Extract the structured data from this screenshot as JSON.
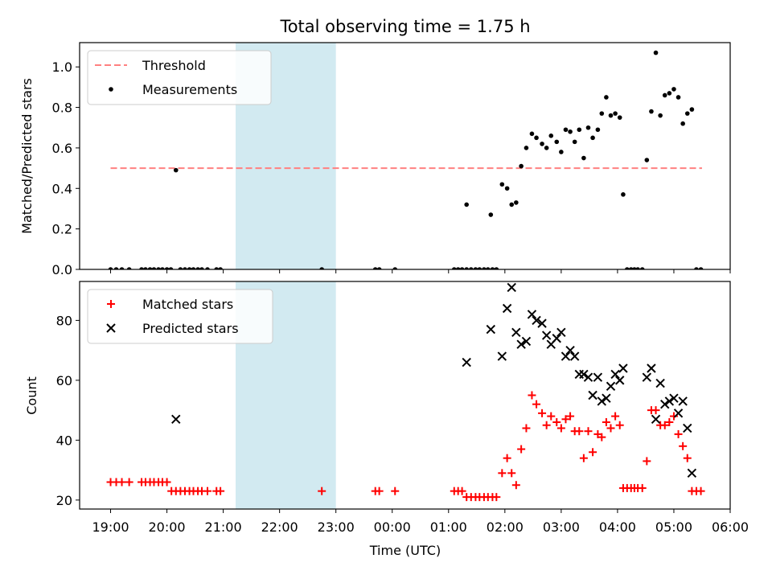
{
  "figure": {
    "title": "Total observing time = 1.75 h",
    "xlabel": "Time (UTC)",
    "x_ticks": [
      "19:00",
      "20:00",
      "21:00",
      "22:00",
      "23:00",
      "00:00",
      "01:00",
      "02:00",
      "03:00",
      "04:00",
      "05:00",
      "06:00"
    ],
    "highlight_span_hours": [
      2.22,
      4.0
    ],
    "colors": {
      "threshold": "#ff8080",
      "measurement": "#000000",
      "matched": "#ff0000",
      "predicted": "#000000",
      "span": "#add8e6"
    }
  },
  "chart_data": [
    {
      "type": "scatter",
      "ylabel": "Matched/Predicted stars",
      "xlim": [
        -0.55,
        11.0
      ],
      "ylim": [
        0,
        1.12
      ],
      "y_ticks": [
        "0.0",
        "0.2",
        "0.4",
        "0.6",
        "0.8",
        "1.0"
      ],
      "y_tick_values": [
        0,
        0.2,
        0.4,
        0.6,
        0.8,
        1.0
      ],
      "legend": [
        "Threshold",
        "Measurements"
      ],
      "threshold": {
        "name": "Threshold",
        "x": [
          0,
          10.5
        ],
        "value": 0.5
      },
      "measurements": {
        "name": "Measurements",
        "points": [
          [
            0.0,
            0
          ],
          [
            0.1,
            0
          ],
          [
            0.2,
            0
          ],
          [
            0.33,
            0
          ],
          [
            0.55,
            0
          ],
          [
            0.62,
            0
          ],
          [
            0.7,
            0
          ],
          [
            0.77,
            0
          ],
          [
            0.85,
            0
          ],
          [
            0.92,
            0
          ],
          [
            1.0,
            0
          ],
          [
            1.07,
            0
          ],
          [
            1.16,
            0.49
          ],
          [
            1.24,
            0
          ],
          [
            1.32,
            0
          ],
          [
            1.4,
            0
          ],
          [
            1.47,
            0
          ],
          [
            1.55,
            0
          ],
          [
            1.62,
            0
          ],
          [
            1.72,
            0
          ],
          [
            1.88,
            0
          ],
          [
            1.95,
            0
          ],
          [
            3.75,
            0
          ],
          [
            4.7,
            0
          ],
          [
            4.77,
            0
          ],
          [
            5.05,
            0
          ],
          [
            6.1,
            0
          ],
          [
            6.17,
            0
          ],
          [
            6.24,
            0
          ],
          [
            6.32,
            0
          ],
          [
            6.4,
            0
          ],
          [
            6.48,
            0
          ],
          [
            6.55,
            0
          ],
          [
            6.63,
            0
          ],
          [
            6.7,
            0
          ],
          [
            6.78,
            0
          ],
          [
            6.85,
            0
          ],
          [
            6.32,
            0.32
          ],
          [
            6.75,
            0.27
          ],
          [
            6.95,
            0.42
          ],
          [
            7.04,
            0.4
          ],
          [
            7.12,
            0.32
          ],
          [
            7.2,
            0.33
          ],
          [
            7.29,
            0.51
          ],
          [
            7.38,
            0.6
          ],
          [
            7.48,
            0.67
          ],
          [
            7.56,
            0.65
          ],
          [
            7.66,
            0.62
          ],
          [
            7.74,
            0.6
          ],
          [
            7.82,
            0.66
          ],
          [
            7.92,
            0.63
          ],
          [
            8.0,
            0.58
          ],
          [
            8.08,
            0.69
          ],
          [
            8.16,
            0.68
          ],
          [
            8.24,
            0.63
          ],
          [
            8.32,
            0.69
          ],
          [
            8.4,
            0.55
          ],
          [
            8.48,
            0.7
          ],
          [
            8.56,
            0.65
          ],
          [
            8.65,
            0.69
          ],
          [
            8.72,
            0.77
          ],
          [
            8.8,
            0.85
          ],
          [
            8.88,
            0.76
          ],
          [
            8.96,
            0.77
          ],
          [
            9.04,
            0.75
          ],
          [
            9.1,
            0.37
          ],
          [
            9.17,
            0
          ],
          [
            9.24,
            0
          ],
          [
            9.3,
            0
          ],
          [
            9.36,
            0
          ],
          [
            9.44,
            0
          ],
          [
            9.52,
            0.54
          ],
          [
            9.6,
            0.78
          ],
          [
            9.68,
            1.07
          ],
          [
            9.76,
            0.76
          ],
          [
            9.84,
            0.86
          ],
          [
            9.92,
            0.87
          ],
          [
            10.0,
            0.89
          ],
          [
            10.08,
            0.85
          ],
          [
            10.16,
            0.72
          ],
          [
            10.24,
            0.77
          ],
          [
            10.32,
            0.79
          ],
          [
            10.4,
            0
          ],
          [
            10.48,
            0
          ]
        ]
      }
    },
    {
      "type": "scatter",
      "ylabel": "Count",
      "xlim": [
        -0.55,
        11.0
      ],
      "ylim": [
        17,
        93
      ],
      "y_ticks": [
        "20",
        "40",
        "60",
        "80"
      ],
      "y_tick_values": [
        20,
        40,
        60,
        80
      ],
      "legend": [
        "Matched stars",
        "Predicted stars"
      ],
      "matched": {
        "name": "Matched stars",
        "points": [
          [
            0.0,
            26
          ],
          [
            0.1,
            26
          ],
          [
            0.2,
            26
          ],
          [
            0.33,
            26
          ],
          [
            0.55,
            26
          ],
          [
            0.62,
            26
          ],
          [
            0.7,
            26
          ],
          [
            0.77,
            26
          ],
          [
            0.85,
            26
          ],
          [
            0.92,
            26
          ],
          [
            1.0,
            26
          ],
          [
            1.08,
            23
          ],
          [
            1.16,
            23
          ],
          [
            1.24,
            23
          ],
          [
            1.32,
            23
          ],
          [
            1.4,
            23
          ],
          [
            1.47,
            23
          ],
          [
            1.55,
            23
          ],
          [
            1.62,
            23
          ],
          [
            1.72,
            23
          ],
          [
            1.88,
            23
          ],
          [
            1.95,
            23
          ],
          [
            3.75,
            23
          ],
          [
            4.7,
            23
          ],
          [
            4.77,
            23
          ],
          [
            5.05,
            23
          ],
          [
            6.1,
            23
          ],
          [
            6.17,
            23
          ],
          [
            6.24,
            23
          ],
          [
            6.32,
            21
          ],
          [
            6.4,
            21
          ],
          [
            6.48,
            21
          ],
          [
            6.55,
            21
          ],
          [
            6.63,
            21
          ],
          [
            6.7,
            21
          ],
          [
            6.78,
            21
          ],
          [
            6.85,
            21
          ],
          [
            6.95,
            29
          ],
          [
            7.04,
            34
          ],
          [
            7.12,
            29
          ],
          [
            7.2,
            25
          ],
          [
            7.29,
            37
          ],
          [
            7.38,
            44
          ],
          [
            7.48,
            55
          ],
          [
            7.56,
            52
          ],
          [
            7.66,
            49
          ],
          [
            7.74,
            45
          ],
          [
            7.82,
            48
          ],
          [
            7.92,
            46
          ],
          [
            8.0,
            44
          ],
          [
            8.08,
            47
          ],
          [
            8.16,
            48
          ],
          [
            8.24,
            43
          ],
          [
            8.32,
            43
          ],
          [
            8.4,
            34
          ],
          [
            8.48,
            43
          ],
          [
            8.56,
            36
          ],
          [
            8.65,
            42
          ],
          [
            8.72,
            41
          ],
          [
            8.8,
            46
          ],
          [
            8.88,
            44
          ],
          [
            8.96,
            48
          ],
          [
            9.04,
            45
          ],
          [
            9.1,
            24
          ],
          [
            9.17,
            24
          ],
          [
            9.24,
            24
          ],
          [
            9.3,
            24
          ],
          [
            9.36,
            24
          ],
          [
            9.44,
            24
          ],
          [
            9.52,
            33
          ],
          [
            9.6,
            50
          ],
          [
            9.68,
            50
          ],
          [
            9.76,
            45
          ],
          [
            9.84,
            45
          ],
          [
            9.92,
            46
          ],
          [
            10.0,
            48
          ],
          [
            10.08,
            42
          ],
          [
            10.16,
            38
          ],
          [
            10.24,
            34
          ],
          [
            10.32,
            23
          ],
          [
            10.4,
            23
          ],
          [
            10.48,
            23
          ]
        ]
      },
      "predicted": {
        "name": "Predicted stars",
        "points": [
          [
            1.16,
            47
          ],
          [
            6.32,
            66
          ],
          [
            6.75,
            77
          ],
          [
            6.95,
            68
          ],
          [
            7.04,
            84
          ],
          [
            7.12,
            91
          ],
          [
            7.2,
            76
          ],
          [
            7.29,
            72
          ],
          [
            7.38,
            73
          ],
          [
            7.48,
            82
          ],
          [
            7.56,
            80
          ],
          [
            7.66,
            79
          ],
          [
            7.74,
            75
          ],
          [
            7.82,
            72
          ],
          [
            7.92,
            74
          ],
          [
            8.0,
            76
          ],
          [
            8.08,
            68
          ],
          [
            8.16,
            70
          ],
          [
            8.24,
            68
          ],
          [
            8.32,
            62
          ],
          [
            8.4,
            62
          ],
          [
            8.48,
            61
          ],
          [
            8.56,
            55
          ],
          [
            8.65,
            61
          ],
          [
            8.72,
            53
          ],
          [
            8.8,
            54
          ],
          [
            8.88,
            58
          ],
          [
            8.96,
            62
          ],
          [
            9.04,
            60
          ],
          [
            9.1,
            64
          ],
          [
            9.52,
            61
          ],
          [
            9.6,
            64
          ],
          [
            9.68,
            47
          ],
          [
            9.76,
            59
          ],
          [
            9.84,
            52
          ],
          [
            9.92,
            53
          ],
          [
            10.0,
            54
          ],
          [
            10.08,
            49
          ],
          [
            10.16,
            53
          ],
          [
            10.24,
            44
          ],
          [
            10.32,
            29
          ]
        ]
      }
    }
  ]
}
